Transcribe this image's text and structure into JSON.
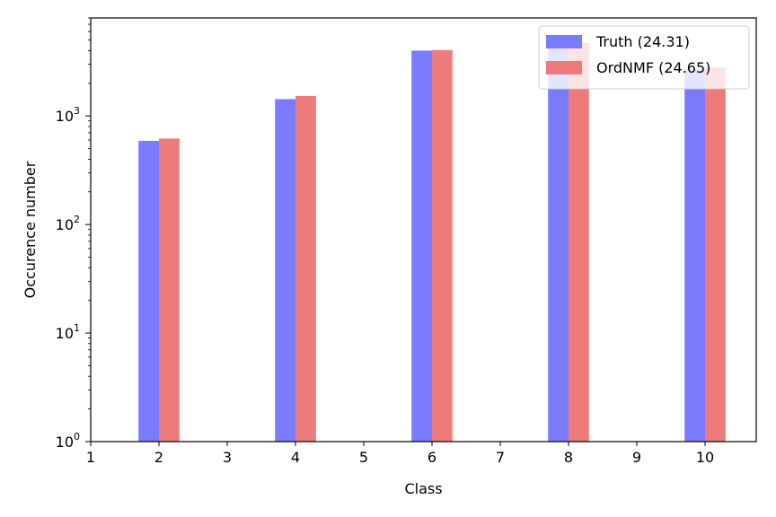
{
  "chart_data": {
    "type": "bar",
    "title": "",
    "xlabel": "Class",
    "ylabel": "Occurence number",
    "yscale": "log",
    "ylim": [
      1,
      8000
    ],
    "xlim": [
      1,
      10.75
    ],
    "x_ticks": [
      "1",
      "2",
      "3",
      "4",
      "5",
      "6",
      "7",
      "8",
      "9",
      "10"
    ],
    "y_ticks": [
      {
        "base": "10",
        "exp": "0"
      },
      {
        "base": "10",
        "exp": "1"
      },
      {
        "base": "10",
        "exp": "2"
      },
      {
        "base": "10",
        "exp": "3"
      }
    ],
    "categories": [
      2,
      4,
      6,
      8,
      10
    ],
    "series": [
      {
        "name": "Truth (24.31)",
        "color": "#7b7bff",
        "values": [
          590,
          1430,
          4000,
          4400,
          2700
        ]
      },
      {
        "name": "OrdNMF (24.65)",
        "color": "#ee7b7b",
        "values": [
          620,
          1530,
          4050,
          4700,
          2800
        ]
      }
    ],
    "grid": false,
    "legend_position": "top-right"
  }
}
